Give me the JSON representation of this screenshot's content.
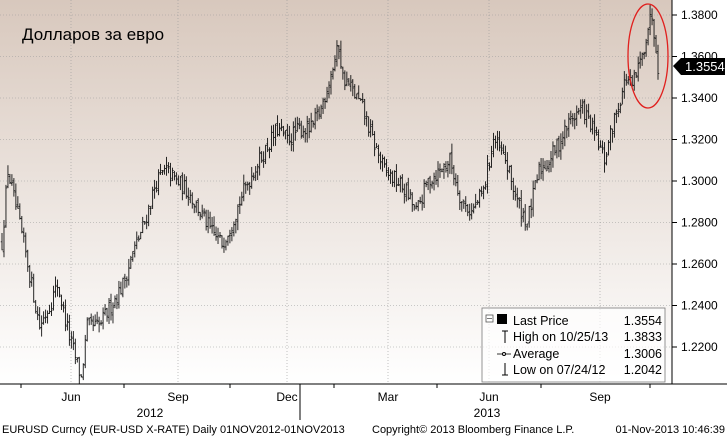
{
  "chart_data": {
    "type": "ohlc",
    "title": "Долларов за евро",
    "y_ticks": [
      "1.3800",
      "1.3600",
      "1.3400",
      "1.3200",
      "1.3000",
      "1.2800",
      "1.2600",
      "1.2400",
      "1.2200"
    ],
    "ylim": [
      1.2031,
      1.39
    ],
    "last_price_tag": "1.3554",
    "x_months": [
      "Jun",
      "Sep",
      "Dec",
      "Mar",
      "Jun",
      "Sep"
    ],
    "x_years": [
      "2012",
      "2013"
    ],
    "series": [
      {
        "points": [
          [
            0,
            1.27
          ],
          [
            3,
            1.305
          ],
          [
            7,
            1.2875
          ],
          [
            12,
            1.265
          ],
          [
            19,
            1.23
          ],
          [
            24,
            1.24
          ],
          [
            28,
            1.25
          ],
          [
            34,
            1.225
          ],
          [
            40,
            1.205
          ],
          [
            43,
            1.23
          ],
          [
            49,
            1.23
          ],
          [
            55,
            1.24
          ],
          [
            61,
            1.25
          ],
          [
            66,
            1.265
          ],
          [
            72,
            1.28
          ],
          [
            78,
            1.3
          ],
          [
            83,
            1.305
          ],
          [
            88,
            1.3
          ],
          [
            94,
            1.295
          ],
          [
            100,
            1.285
          ],
          [
            106,
            1.275
          ],
          [
            111,
            1.27
          ],
          [
            116,
            1.28
          ],
          [
            122,
            1.295
          ],
          [
            127,
            1.305
          ],
          [
            133,
            1.315
          ],
          [
            139,
            1.325
          ],
          [
            144,
            1.32
          ],
          [
            150,
            1.325
          ],
          [
            156,
            1.325
          ],
          [
            161,
            1.335
          ],
          [
            167,
            1.355
          ],
          [
            170,
            1.365
          ],
          [
            172,
            1.35
          ],
          [
            176,
            1.345
          ],
          [
            182,
            1.335
          ],
          [
            187,
            1.32
          ],
          [
            193,
            1.305
          ],
          [
            199,
            1.3
          ],
          [
            204,
            1.295
          ],
          [
            209,
            1.285
          ],
          [
            215,
            1.3
          ],
          [
            221,
            1.305
          ],
          [
            226,
            1.31
          ],
          [
            232,
            1.29
          ],
          [
            237,
            1.285
          ],
          [
            243,
            1.295
          ],
          [
            248,
            1.32
          ],
          [
            254,
            1.31
          ],
          [
            260,
            1.29
          ],
          [
            265,
            1.28
          ],
          [
            271,
            1.305
          ],
          [
            276,
            1.31
          ],
          [
            282,
            1.32
          ],
          [
            287,
            1.33
          ],
          [
            293,
            1.335
          ],
          [
            298,
            1.325
          ],
          [
            304,
            1.31
          ],
          [
            309,
            1.33
          ],
          [
            315,
            1.35
          ],
          [
            318,
            1.345
          ],
          [
            323,
            1.36
          ],
          [
            326,
            1.375
          ],
          [
            328,
            1.38
          ],
          [
            330,
            1.365
          ],
          [
            331,
            1.3554
          ]
        ]
      }
    ],
    "last_price_bar": 0.9333
  },
  "legend": {
    "rows": [
      {
        "label": "Last Price",
        "value": "1.3554"
      },
      {
        "label": "High on 10/25/13",
        "value": "1.3833"
      },
      {
        "label": "Average",
        "value": "1.3006"
      },
      {
        "label": "Low on 07/24/12",
        "value": "1.2042"
      }
    ]
  },
  "footer": {
    "left": "EURUSD Curncy (EUR-USD X-RATE)  Daily 01NOV2012-01NOV2013",
    "center": "Copyright© 2013 Bloomberg Finance L.P.",
    "right": "01-Nov-2013 10:46:39"
  },
  "colors": {
    "plot_top": "#d8c8bd",
    "plot_bottom": "#ffffff",
    "price": "#111111",
    "highlight": "#e0201e"
  }
}
